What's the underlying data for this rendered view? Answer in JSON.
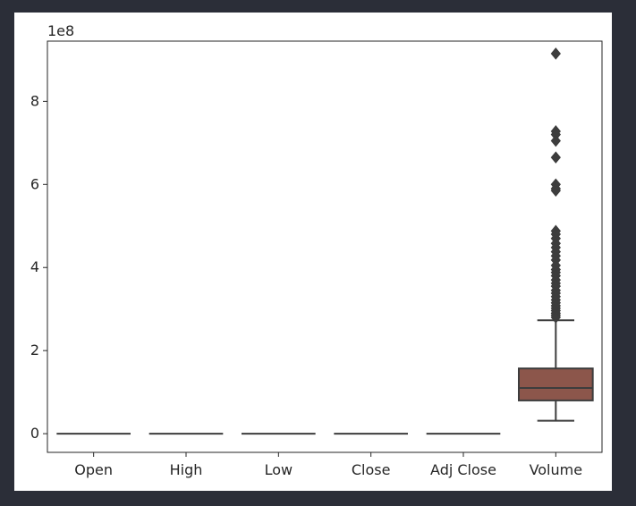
{
  "chart_data": {
    "type": "box",
    "title": "",
    "xlabel": "",
    "ylabel": "",
    "categories": [
      "Open",
      "High",
      "Low",
      "Close",
      "Adj Close",
      "Volume"
    ],
    "y_scale_label": "1e8",
    "ylim": [
      -0.45,
      9.45
    ],
    "yticks": [
      0,
      2,
      4,
      6,
      8
    ],
    "ytick_unit_multiplier": 100000000,
    "grid": false,
    "boxes": [
      {
        "name": "Open",
        "whisker_low": 0,
        "q1": 0,
        "median": 0,
        "q3": 0,
        "whisker_high": 0,
        "outliers": []
      },
      {
        "name": "High",
        "whisker_low": 0,
        "q1": 0,
        "median": 0,
        "q3": 0,
        "whisker_high": 0,
        "outliers": []
      },
      {
        "name": "Low",
        "whisker_low": 0,
        "q1": 0,
        "median": 0,
        "q3": 0,
        "whisker_high": 0,
        "outliers": []
      },
      {
        "name": "Close",
        "whisker_low": 0,
        "q1": 0,
        "median": 0,
        "q3": 0,
        "whisker_high": 0,
        "outliers": []
      },
      {
        "name": "Adj Close",
        "whisker_low": 0,
        "q1": 0,
        "median": 0,
        "q3": 0,
        "whisker_high": 0,
        "outliers": []
      },
      {
        "name": "Volume",
        "whisker_low": 0.31,
        "q1": 0.8,
        "median": 1.1,
        "q3": 1.57,
        "whisker_high": 2.73,
        "outliers": [
          9.15,
          7.28,
          7.2,
          7.05,
          6.65,
          6.0,
          5.9,
          5.85,
          4.88,
          4.8,
          4.7,
          4.58,
          4.48,
          4.38,
          4.28,
          4.18,
          4.05,
          3.95,
          3.88,
          3.8,
          3.7,
          3.62,
          3.55,
          3.45,
          3.38,
          3.3,
          3.22,
          3.15,
          3.08,
          3.02,
          2.96,
          2.9,
          2.85,
          2.8
        ]
      }
    ],
    "colors": {
      "box_fill": "#8c564b",
      "line": "#3d3d3d",
      "axes": "#262626"
    }
  }
}
